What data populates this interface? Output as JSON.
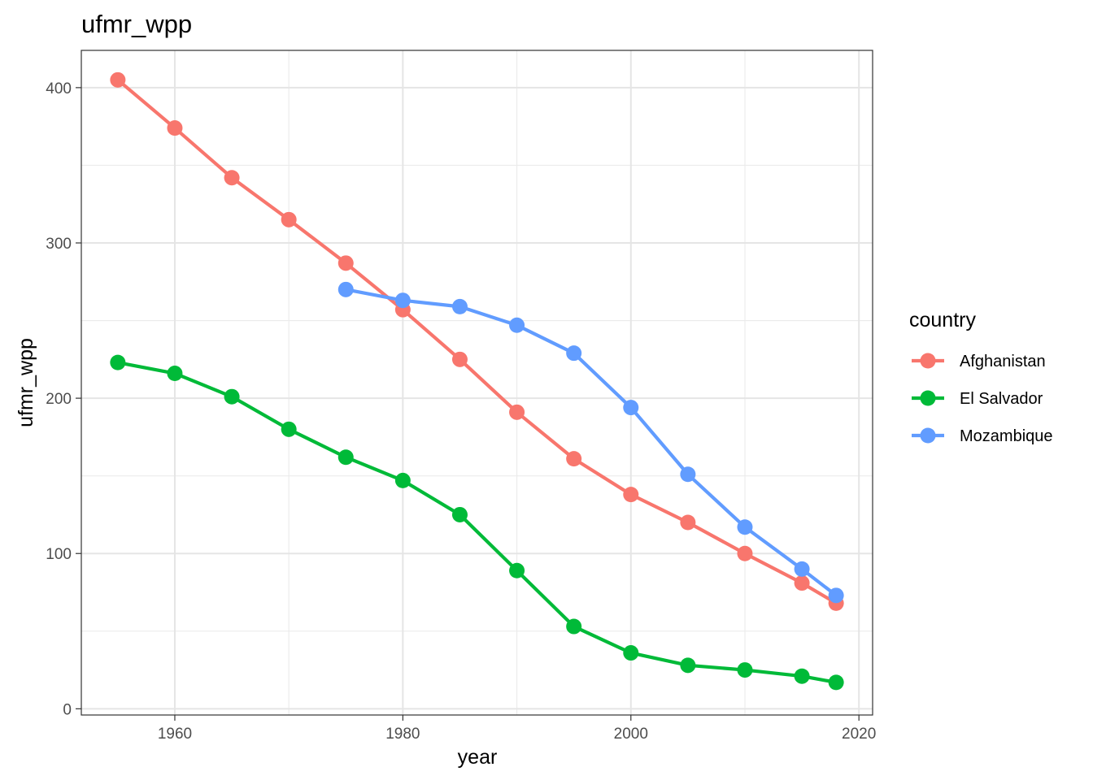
{
  "chart_data": {
    "type": "line",
    "title": "ufmr_wpp",
    "xlabel": "year",
    "ylabel": "ufmr_wpp",
    "xlim": [
      1951.8,
      2021.2
    ],
    "ylim": [
      -4,
      424
    ],
    "x_ticks": [
      1960,
      1980,
      2000,
      2020
    ],
    "y_ticks": [
      0,
      100,
      200,
      300,
      400
    ],
    "x_minor_ticks": [
      1970,
      1990,
      2010
    ],
    "y_minor_ticks": [
      50,
      150,
      250,
      350
    ],
    "grid": true,
    "legend_title": "country",
    "legend_position": "right",
    "series": [
      {
        "name": "Afghanistan",
        "color": "#F8766D",
        "x": [
          1955,
          1960,
          1965,
          1970,
          1975,
          1980,
          1985,
          1990,
          1995,
          2000,
          2005,
          2010,
          2015,
          2018
        ],
        "values": [
          405,
          374,
          342,
          315,
          287,
          257,
          225,
          191,
          161,
          138,
          120,
          100,
          81,
          68
        ]
      },
      {
        "name": "El Salvador",
        "color": "#00BA38",
        "x": [
          1955,
          1960,
          1965,
          1970,
          1975,
          1980,
          1985,
          1990,
          1995,
          2000,
          2005,
          2010,
          2015,
          2018
        ],
        "values": [
          223,
          216,
          201,
          180,
          162,
          147,
          125,
          89,
          53,
          36,
          28,
          25,
          21,
          17
        ]
      },
      {
        "name": "Mozambique",
        "color": "#619CFF",
        "x": [
          1975,
          1980,
          1985,
          1990,
          1995,
          2000,
          2005,
          2010,
          2015,
          2018
        ],
        "values": [
          270,
          263,
          259,
          247,
          229,
          194,
          151,
          117,
          90,
          73
        ]
      }
    ]
  }
}
